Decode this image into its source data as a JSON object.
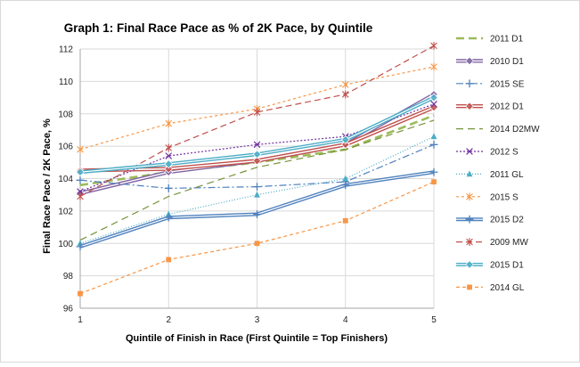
{
  "chart_data": {
    "type": "line",
    "title": "Graph 1: Final Race Pace as % of 2K Pace, by Quintile",
    "xlabel": "Quintile of Finish in Race (First Quintile = Top Finishers)",
    "ylabel": "Final Race Pace / 2K Pace, %",
    "x": [
      1,
      2,
      3,
      4,
      5
    ],
    "xticks": [
      "1",
      "2",
      "3",
      "4",
      "5"
    ],
    "ylim": [
      96,
      112
    ],
    "yticks": [
      "96",
      "98",
      "100",
      "102",
      "104",
      "106",
      "108",
      "110",
      "112"
    ],
    "grid": true,
    "legend_position": "right",
    "series": [
      {
        "name": "2011 D1",
        "values": [
          103.6,
          104.4,
          105.0,
          105.8,
          107.9
        ],
        "color": "#9bbb59",
        "dash": "9,5",
        "width": 2.6,
        "marker": "none",
        "double": false
      },
      {
        "name": "2010 D1",
        "values": [
          103.1,
          104.4,
          105.1,
          106.1,
          109.2
        ],
        "color": "#8064a2",
        "dash": "",
        "width": 1.6,
        "marker": "diamond",
        "double": true
      },
      {
        "name": "2015 SE",
        "values": [
          103.9,
          103.4,
          103.5,
          103.8,
          106.1
        ],
        "color": "#4f81bd",
        "dash": "8,3,2,3",
        "width": 1.2,
        "marker": "plus",
        "double": false
      },
      {
        "name": "2012 D1",
        "values": [
          104.5,
          104.6,
          105.1,
          106.1,
          108.4
        ],
        "color": "#c0504d",
        "dash": "",
        "width": 1.8,
        "marker": "diamond",
        "double": true
      },
      {
        "name": "2014 D2MW",
        "values": [
          100.2,
          102.9,
          104.7,
          105.8,
          107.6
        ],
        "color": "#77933c",
        "dash": "8,5",
        "width": 1.2,
        "marker": "none",
        "double": false
      },
      {
        "name": "2012 S",
        "values": [
          103.2,
          105.4,
          106.1,
          106.6,
          108.6
        ],
        "color": "#7030a0",
        "dash": "2,2",
        "width": 1.2,
        "marker": "x",
        "double": false
      },
      {
        "name": "2011 GL",
        "values": [
          100.0,
          101.8,
          103.0,
          104.0,
          106.6
        ],
        "color": "#4bacc6",
        "dash": "1,2",
        "width": 1.2,
        "marker": "triangle",
        "double": false
      },
      {
        "name": "2015 S",
        "values": [
          105.8,
          107.4,
          108.3,
          109.8,
          110.9
        ],
        "color": "#f79646",
        "dash": "3,3",
        "width": 1.2,
        "marker": "star",
        "double": false
      },
      {
        "name": "2015 D2",
        "values": [
          99.8,
          101.6,
          101.8,
          103.6,
          104.4
        ],
        "color": "#4f81bd",
        "dash": "",
        "width": 1.4,
        "marker": "plus",
        "double": true
      },
      {
        "name": "2009 MW",
        "values": [
          102.9,
          105.9,
          108.1,
          109.2,
          112.2
        ],
        "color": "#c0504d",
        "dash": "7,4",
        "width": 1.2,
        "marker": "star",
        "double": false
      },
      {
        "name": "2015 D1",
        "values": [
          104.4,
          104.9,
          105.5,
          106.4,
          109.0
        ],
        "color": "#4bacc6",
        "dash": "",
        "width": 1.4,
        "marker": "diamond",
        "double": true
      },
      {
        "name": "2014 GL",
        "values": [
          96.9,
          99.0,
          100.0,
          101.4,
          103.8
        ],
        "color": "#f79646",
        "dash": "4,3",
        "width": 1.2,
        "marker": "square",
        "double": false
      }
    ]
  }
}
